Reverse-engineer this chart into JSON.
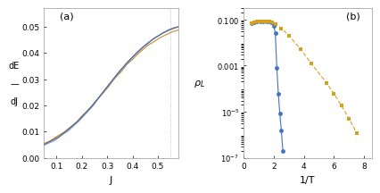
{
  "panel_a": {
    "label": "(a)",
    "xlabel": "J",
    "ylabel": "dE/dJ",
    "xlim": [
      0.05,
      0.58
    ],
    "ylim": [
      0.0,
      0.057
    ],
    "yticks": [
      0.0,
      0.01,
      0.02,
      0.03,
      0.04,
      0.05
    ],
    "xticks": [
      0.1,
      0.2,
      0.3,
      0.4,
      0.5
    ],
    "colors": [
      "#d4a020",
      "#c07818",
      "#7090c8",
      "#4060a8"
    ]
  },
  "panel_b": {
    "label": "(b)",
    "xlabel": "1/T",
    "ylabel": "rho_L",
    "xlim": [
      0,
      8.5
    ],
    "xticks": [
      0,
      2,
      4,
      6,
      8
    ],
    "blue_x": [
      0.5,
      0.7,
      0.9,
      1.1,
      1.3,
      1.5,
      1.7,
      1.85,
      2.0,
      2.1,
      2.2,
      2.3,
      2.4,
      2.5,
      2.6
    ],
    "blue_y": [
      0.068,
      0.075,
      0.08,
      0.082,
      0.083,
      0.083,
      0.082,
      0.075,
      0.052,
      0.025,
      0.0008,
      6e-05,
      8e-06,
      1.5e-06,
      2e-07
    ],
    "orange_x": [
      0.5,
      0.7,
      0.9,
      1.1,
      1.3,
      1.5,
      1.7,
      1.9,
      2.1,
      2.5,
      3.0,
      3.8,
      4.5,
      5.5,
      6.0,
      6.5,
      7.0,
      7.5
    ],
    "orange_y": [
      0.068,
      0.075,
      0.08,
      0.082,
      0.083,
      0.083,
      0.082,
      0.078,
      0.065,
      0.042,
      0.02,
      0.005,
      0.0012,
      0.00018,
      6e-05,
      1.8e-05,
      5e-06,
      1.2e-06
    ],
    "blue_color": "#4472c4",
    "orange_color": "#d4a020"
  },
  "fig_bg": "#ffffff"
}
